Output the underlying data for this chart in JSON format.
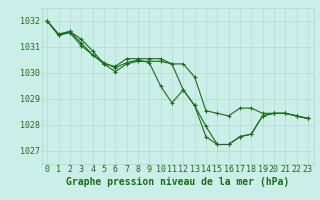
{
  "background_color": "#cceee8",
  "grid_color": "#aad4cc",
  "line_color": "#1a6b1a",
  "marker_color": "#1a6b1a",
  "xlabel": "Graphe pression niveau de la mer (hPa)",
  "xlim": [
    -0.5,
    23.5
  ],
  "ylim": [
    1026.5,
    1032.5
  ],
  "yticks": [
    1027,
    1028,
    1029,
    1030,
    1031,
    1032
  ],
  "xticks": [
    0,
    1,
    2,
    3,
    4,
    5,
    6,
    7,
    8,
    9,
    10,
    11,
    12,
    13,
    14,
    15,
    16,
    17,
    18,
    19,
    20,
    21,
    22,
    23
  ],
  "series": [
    [
      1032.0,
      1031.45,
      1031.55,
      1031.05,
      1030.7,
      1030.35,
      1030.05,
      1030.35,
      1030.45,
      1030.45,
      1030.45,
      1030.35,
      1029.35,
      1028.75,
      1027.95,
      1027.25,
      1027.25,
      1027.55,
      1027.65,
      1028.35,
      1028.45,
      1028.45,
      1028.35,
      1028.25
    ],
    [
      1032.0,
      1031.45,
      1031.6,
      1031.15,
      1030.7,
      1030.4,
      1030.2,
      1030.4,
      1030.5,
      1030.4,
      1029.5,
      1028.85,
      1029.35,
      1028.75,
      1027.55,
      1027.25,
      1027.25,
      1027.55,
      1027.65,
      1028.35,
      1028.45,
      1028.45,
      1028.35,
      1028.25
    ],
    [
      1032.0,
      1031.5,
      1031.6,
      1031.3,
      1030.85,
      1030.35,
      1030.25,
      1030.55,
      1030.55,
      1030.55,
      1030.55,
      1030.35,
      1030.35,
      1029.85,
      1028.55,
      1028.45,
      1028.35,
      1028.65,
      1028.65,
      1028.45,
      1028.45,
      1028.45,
      1028.35,
      1028.25
    ]
  ],
  "xlabel_fontsize": 7,
  "tick_fontsize": 6,
  "linewidth": 0.8,
  "markersize": 3
}
